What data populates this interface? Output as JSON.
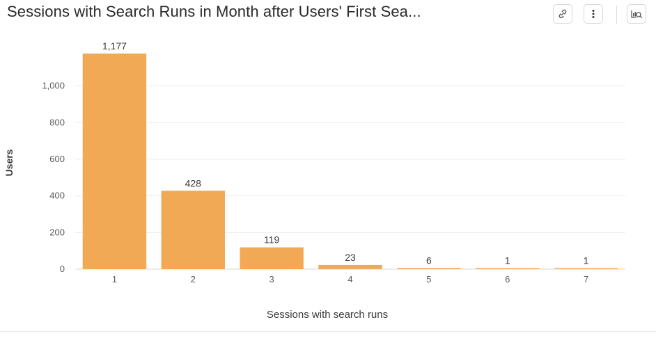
{
  "header": {
    "title": "Sessions with Search Runs in Month after Users' First Sea..."
  },
  "toolbar": {
    "link_icon": "link-icon",
    "more_icon": "vertical-ellipsis-icon",
    "explore_icon": "chart-search-icon"
  },
  "colors": {
    "bar": "#f2a955",
    "grid": "#ececec",
    "axis_text": "#5b5b5b"
  },
  "chart_data": {
    "type": "bar",
    "categories": [
      "1",
      "2",
      "3",
      "4",
      "5",
      "6",
      "7"
    ],
    "values": [
      1177,
      428,
      119,
      23,
      6,
      1,
      1
    ],
    "data_labels": [
      "1,177",
      "428",
      "119",
      "23",
      "6",
      "1",
      "1"
    ],
    "title": "Sessions with Search Runs in Month after Users' First Sea...",
    "xlabel": "Sessions with search runs",
    "ylabel": "Users",
    "ylim": [
      0,
      1177
    ],
    "yticks": [
      0,
      200,
      400,
      600,
      800,
      1000
    ],
    "ytick_labels": [
      "0",
      "200",
      "400",
      "600",
      "800",
      "1,000"
    ],
    "grid": true,
    "legend": "none"
  }
}
